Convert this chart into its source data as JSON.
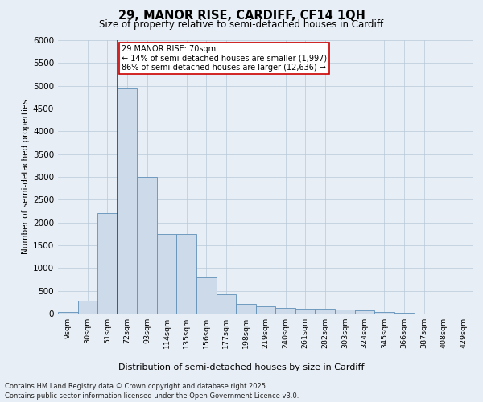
{
  "title_line1": "29, MANOR RISE, CARDIFF, CF14 1QH",
  "title_line2": "Size of property relative to semi-detached houses in Cardiff",
  "xlabel": "Distribution of semi-detached houses by size in Cardiff",
  "ylabel": "Number of semi-detached properties",
  "categories": [
    "9sqm",
    "30sqm",
    "51sqm",
    "72sqm",
    "93sqm",
    "114sqm",
    "135sqm",
    "156sqm",
    "177sqm",
    "198sqm",
    "219sqm",
    "240sqm",
    "261sqm",
    "282sqm",
    "303sqm",
    "324sqm",
    "345sqm",
    "366sqm",
    "387sqm",
    "408sqm",
    "429sqm"
  ],
  "values": [
    30,
    280,
    2200,
    4950,
    3000,
    1750,
    1750,
    800,
    430,
    210,
    160,
    130,
    110,
    100,
    85,
    65,
    35,
    20,
    8,
    4,
    2
  ],
  "bar_color": "#ccdaea",
  "bar_edge_color": "#6090b8",
  "vline_color": "#cc0000",
  "vline_bin_index": 3,
  "annotation_text": "29 MANOR RISE: 70sqm\n← 14% of semi-detached houses are smaller (1,997)\n86% of semi-detached houses are larger (12,636) →",
  "box_facecolor": "#ffffff",
  "box_edgecolor": "#cc0000",
  "ylim": [
    0,
    6000
  ],
  "yticks": [
    0,
    500,
    1000,
    1500,
    2000,
    2500,
    3000,
    3500,
    4000,
    4500,
    5000,
    5500,
    6000
  ],
  "footer_line1": "Contains HM Land Registry data © Crown copyright and database right 2025.",
  "footer_line2": "Contains public sector information licensed under the Open Government Licence v3.0.",
  "background_color": "#e8eef5",
  "plot_bg_color": "#e8eef5",
  "grid_color": "#b8c8d8"
}
